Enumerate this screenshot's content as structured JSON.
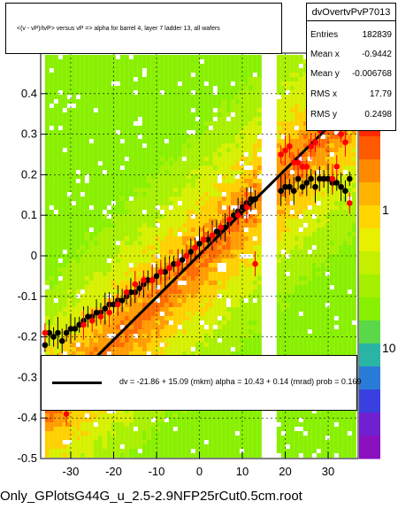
{
  "header": {
    "title": "<(v - vP)/tvP> versus   vP => alpha for barrel 4, layer 7 ladder 13, all wafers"
  },
  "stats": {
    "name": "dvOvertvPvP7013",
    "entries_label": "Entries",
    "entries_value": "182839",
    "mean_x_label": "Mean x",
    "mean_x_value": "-0.9442",
    "mean_y_label": "Mean y",
    "mean_y_value": "-0.006768",
    "rms_x_label": "RMS x",
    "rms_x_value": "17.79",
    "rms_y_label": "RMS y",
    "rms_y_value": "0.2498"
  },
  "fit": {
    "text": "dv =  -21.86 +  15.09 (mkm) alpha =    10.43 +   0.14 (mrad) prob = 0.169"
  },
  "footer": {
    "filename": "Only_GPlotsG44G_u_2.5-2.9NFP25rCut0.5cm.root"
  },
  "axes": {
    "x_ticks": [
      "-30",
      "-20",
      "-10",
      "0",
      "10",
      "20",
      "30"
    ],
    "y_ticks": [
      "-0.5",
      "-0.4",
      "-0.3",
      "-0.2",
      "-0.1",
      "0",
      "0.1",
      "0.2",
      "0.3",
      "0.4"
    ],
    "z_ticks": [
      "1",
      "10"
    ]
  },
  "chart_data": {
    "type": "scatter",
    "title": "<(v - vP)/tvP> versus   vP => alpha for barrel 4, layer 7 ladder 13, all wafers",
    "xlim": [
      -37,
      37
    ],
    "ylim": [
      -0.5,
      0.5
    ],
    "grid": true,
    "heatmap_ranges": [
      [
        -36,
        14
      ],
      [
        18,
        36
      ]
    ],
    "fit_line": {
      "x": [
        -26,
        35
      ],
      "y": [
        -0.27,
        0.37
      ]
    },
    "series": [
      {
        "color": "#000000",
        "x": [
          -36,
          -35,
          -34,
          -33,
          -32,
          -31,
          -30,
          -29,
          -28,
          -27,
          -26,
          -25,
          -24,
          -23,
          -22,
          -21,
          -20,
          -19,
          -18,
          -17,
          -16,
          -15,
          -14,
          -13,
          -12,
          -11,
          -10,
          -9,
          -8,
          -7,
          -6,
          -5,
          -4,
          -3,
          -2,
          -1,
          0,
          1,
          2,
          3,
          4,
          5,
          6,
          7,
          8,
          9,
          10,
          11,
          12,
          13,
          19,
          20,
          21,
          22,
          23,
          24,
          25,
          26,
          27,
          28,
          29,
          30,
          31,
          32,
          33,
          34,
          35
        ],
        "y": [
          -0.22,
          -0.19,
          -0.2,
          -0.19,
          -0.21,
          -0.19,
          -0.18,
          -0.18,
          -0.17,
          -0.16,
          -0.15,
          -0.15,
          -0.14,
          -0.14,
          -0.13,
          -0.12,
          -0.12,
          -0.11,
          -0.11,
          -0.1,
          -0.09,
          -0.09,
          -0.08,
          -0.07,
          -0.06,
          -0.06,
          -0.05,
          -0.04,
          -0.04,
          -0.03,
          -0.02,
          -0.02,
          -0.01,
          0.0,
          0.01,
          0.02,
          0.03,
          0.04,
          0.04,
          0.05,
          0.06,
          0.06,
          0.07,
          0.08,
          0.1,
          0.11,
          0.12,
          0.13,
          0.14,
          0.14,
          0.16,
          0.17,
          0.17,
          0.16,
          0.19,
          0.17,
          0.18,
          0.19,
          0.17,
          0.19,
          0.19,
          0.19,
          0.18,
          0.18,
          0.17,
          0.16,
          0.19
        ]
      },
      {
        "color": "#ff0000",
        "x": [
          -36,
          -33,
          -31,
          -29,
          -27,
          -25,
          -23,
          -21,
          -19,
          -17,
          -15,
          -13,
          -11,
          -9,
          -7,
          -5,
          -3,
          -1,
          1,
          3,
          5,
          7,
          9,
          11,
          13,
          19,
          20,
          21,
          22,
          23,
          24,
          25,
          26,
          27,
          28,
          29,
          30,
          31,
          32,
          33,
          34,
          35
        ],
        "y": [
          -0.19,
          -0.28,
          -0.39,
          -0.35,
          -0.17,
          -0.16,
          -0.15,
          -0.14,
          -0.12,
          -0.09,
          -0.07,
          -0.06,
          -0.06,
          -0.04,
          -0.03,
          -0.02,
          0.0,
          0.02,
          0.04,
          0.05,
          0.07,
          0.09,
          0.1,
          0.12,
          -0.02,
          0.25,
          0.26,
          0.27,
          0.23,
          0.23,
          0.22,
          0.22,
          0.27,
          0.28,
          0.31,
          0.33,
          0.33,
          0.19,
          0.22,
          0.3,
          0.28,
          0.13
        ]
      }
    ]
  }
}
